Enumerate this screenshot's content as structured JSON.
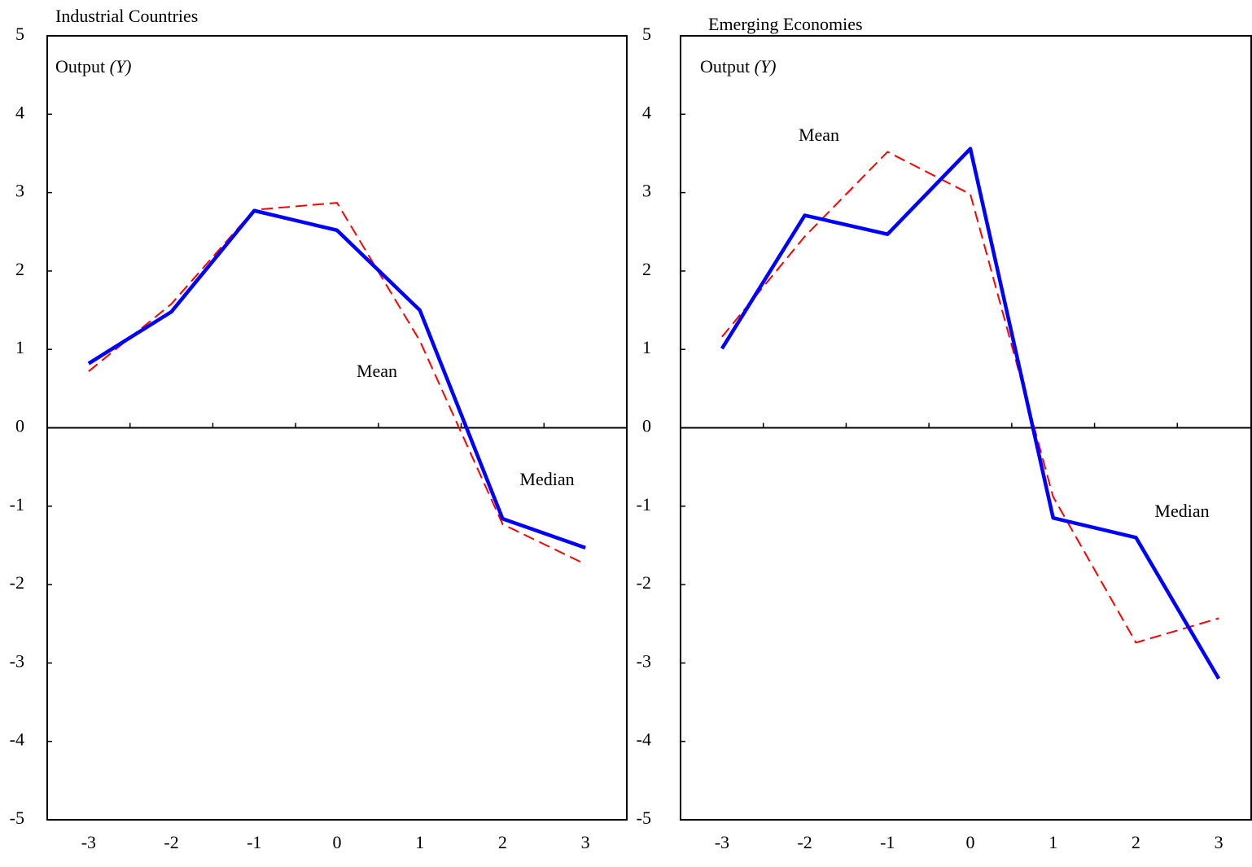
{
  "chart_data": [
    {
      "type": "line",
      "title": "Industrial Countries",
      "subtitle": "Output",
      "subtitle_symbol": "(Y)",
      "categories": [
        "-3",
        "-2",
        "-1",
        "0",
        "1",
        "2",
        "3"
      ],
      "series": [
        {
          "color": "#0000ff",
          "dash": false,
          "values": [
            0.82,
            1.48,
            2.77,
            2.52,
            1.5,
            -1.16,
            -1.53
          ]
        },
        {
          "color": "#ff0000",
          "dash": true,
          "values": [
            0.72,
            1.58,
            2.78,
            2.87,
            1.11,
            -1.23,
            -1.74
          ]
        }
      ],
      "annotations": [
        "Mean",
        "Median"
      ],
      "ylim": [
        -5,
        5
      ],
      "yticks": [
        -5,
        -4,
        -3,
        -2,
        -1,
        0,
        1,
        2,
        3,
        4,
        5
      ]
    },
    {
      "type": "line",
      "title": "Emerging Economies",
      "subtitle": "Output",
      "subtitle_symbol": "(Y)",
      "categories": [
        "-3",
        "-2",
        "-1",
        "0",
        "1",
        "2",
        "3"
      ],
      "series": [
        {
          "color": "#0000ff",
          "dash": false,
          "values": [
            1.01,
            2.71,
            2.47,
            3.56,
            -1.15,
            -1.4,
            -3.2
          ]
        },
        {
          "color": "#ff0000",
          "dash": true,
          "values": [
            1.16,
            2.44,
            3.52,
            2.98,
            -0.88,
            -2.74,
            -2.43
          ]
        }
      ],
      "annotations": [
        "Mean",
        "Median"
      ],
      "ylim": [
        -5,
        5
      ],
      "yticks": [
        -5,
        -4,
        -3,
        -2,
        -1,
        0,
        1,
        2,
        3,
        4,
        5
      ]
    }
  ]
}
